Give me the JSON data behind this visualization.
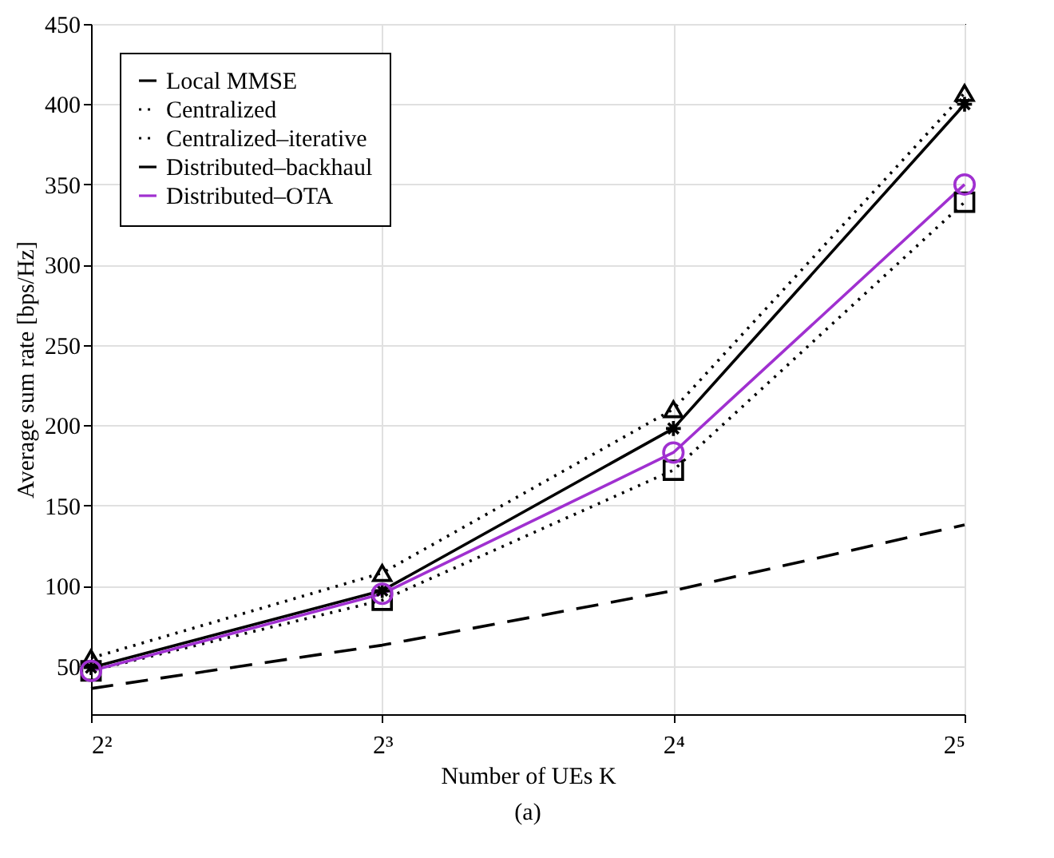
{
  "chart_data": {
    "type": "line",
    "xlabel": "Number of UEs K",
    "ylabel": "Average sum rate [bps/Hz]",
    "annotations": [
      "(a)"
    ],
    "x": [
      4,
      8,
      16,
      32
    ],
    "log": "x",
    "xlim": [
      4,
      32
    ],
    "xticks": [
      {
        "value": 4,
        "label": "2²"
      },
      {
        "value": 8,
        "label": "2³"
      },
      {
        "value": 16,
        "label": "2⁴"
      },
      {
        "value": 32,
        "label": "2⁵"
      }
    ],
    "ylim": [
      20,
      450
    ],
    "yticks": [
      50,
      100,
      150,
      200,
      250,
      300,
      350,
      400,
      450
    ],
    "grid": true,
    "legend": "top left",
    "series": [
      {
        "name": "Local MMSE",
        "color": "#000000",
        "values": [
          36,
          63,
          97,
          138
        ],
        "marker": "none",
        "line_style": "dashed"
      },
      {
        "name": "Centralized",
        "color": "#000000",
        "values": [
          47,
          91,
          172,
          339
        ],
        "marker": "square",
        "line_style": "dotted"
      },
      {
        "name": "Centralized–iterative",
        "color": "#000000",
        "values": [
          55,
          108,
          210,
          407
        ],
        "marker": "triangle",
        "line_style": "dotted"
      },
      {
        "name": "Distributed–backhaul",
        "color": "#000000",
        "values": [
          49,
          97,
          198,
          400
        ],
        "marker": "cross",
        "line_style": "solid"
      },
      {
        "name": "Distributed–OTA",
        "color": "#a030d0",
        "values": [
          47,
          95,
          183,
          350
        ],
        "marker": "circle",
        "line_style": "solid"
      }
    ]
  }
}
